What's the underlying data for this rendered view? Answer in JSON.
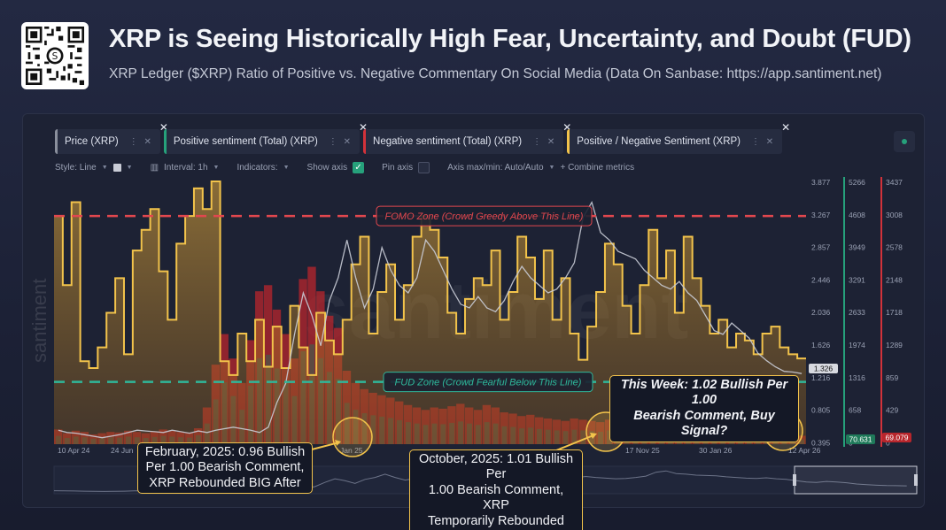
{
  "header": {
    "title": "XRP is Seeing Historically High Fear, Uncertainty, and Doubt (FUD)",
    "subtitle": "XRP Ledger ($XRP) Ratio of Positive vs. Negative Commentary On Social Media (Data On Sanbase: https://app.santiment.net)"
  },
  "metrics": [
    {
      "label": "Price (XRP)",
      "color": "#8a8f9c"
    },
    {
      "label": "Positive sentiment (Total) (XRP)",
      "color": "#26a17b"
    },
    {
      "label": "Negative sentiment (Total) (XRP)",
      "color": "#d2323a"
    },
    {
      "label": "Positive / Negative Sentiment (XRP)",
      "color": "#f2c34b"
    }
  ],
  "toolbar": {
    "style_label": "Style: Line",
    "interval_label": "Interval: 1h",
    "indicators_label": "Indicators:",
    "show_axis_label": "Show axis",
    "pin_axis_label": "Pin axis",
    "axis_minmax_label": "Axis max/min: Auto/Auto",
    "combine_label": "+ Combine metrics",
    "check_mark": "✓"
  },
  "colors": {
    "accent": "#f2c34b",
    "positive": "#26a17b",
    "negative": "#d2323a",
    "price": "#c9ccd6",
    "fomo_line": "#e2474e",
    "fud_line": "#2fb79a"
  },
  "chart_data": {
    "type": "line",
    "watermark": "santiment",
    "x_tick_labels": [
      "10 Apr 24",
      "24 Jun",
      "Jan 25",
      "17 Nov 25",
      "30 Jan 26",
      "12 Apr 26"
    ],
    "y_axes": {
      "price": [
        "3.877",
        "3.267",
        "2.857",
        "2.446",
        "2.036",
        "1.626",
        "1.216",
        "0.805",
        "0.395"
      ],
      "positive": [
        "5266",
        "4608",
        "3949",
        "3291",
        "2633",
        "1974",
        "1316",
        "658",
        "0"
      ],
      "negative": [
        "3437",
        "3008",
        "2578",
        "2148",
        "1718",
        "1289",
        "859",
        "429",
        "0"
      ]
    },
    "last_values": {
      "price": "1.326",
      "positive": "70.631",
      "negative": "69.079"
    },
    "price_range": [
      0.395,
      3.877
    ],
    "ratio_range": [
      0.4,
      2.3
    ],
    "series": [
      {
        "name": "Price (XRP)",
        "color": "#c9ccd6",
        "values": [
          0.58,
          0.55,
          0.54,
          0.52,
          0.5,
          0.48,
          0.5,
          0.52,
          0.55,
          0.58,
          0.57,
          0.56,
          0.55,
          0.58,
          0.56,
          0.54,
          0.57,
          0.55,
          0.58,
          0.6,
          0.62,
          0.6,
          0.58,
          0.55,
          0.62,
          0.95,
          1.2,
          1.85,
          2.4,
          2.1,
          1.7,
          2.3,
          2.6,
          3.1,
          2.6,
          2.2,
          2.45,
          3.0,
          2.7,
          2.5,
          2.4,
          2.6,
          3.1,
          2.95,
          2.7,
          2.45,
          2.25,
          2.2,
          2.35,
          2.2,
          2.15,
          2.3,
          2.55,
          2.75,
          2.6,
          2.5,
          2.4,
          2.45,
          2.6,
          2.8,
          3.4,
          3.6,
          3.2,
          3.1,
          2.95,
          2.9,
          2.85,
          2.7,
          2.6,
          2.5,
          2.45,
          2.55,
          2.4,
          2.3,
          2.1,
          1.9,
          1.85,
          2.0,
          1.9,
          1.8,
          1.6,
          1.5,
          1.42,
          1.36,
          1.35,
          1.33
        ]
      },
      {
        "name": "Positive / Negative Sentiment (XRP)",
        "color": "#f2c34b",
        "values": [
          2.05,
          1.55,
          2.15,
          1.0,
          0.95,
          1.1,
          1.35,
          1.6,
          1.05,
          1.8,
          1.95,
          2.1,
          1.65,
          1.3,
          1.85,
          2.05,
          2.25,
          2.1,
          2.3,
          1.0,
          0.9,
          1.2,
          1.0,
          1.3,
          0.96,
          1.25,
          0.95,
          1.4,
          1.1,
          0.9,
          1.35,
          1.15,
          1.05,
          1.3,
          1.7,
          1.9,
          1.2,
          1.5,
          1.7,
          1.3,
          1.55,
          1.9,
          2.05,
          1.95,
          1.75,
          1.35,
          1.2,
          1.45,
          1.6,
          1.55,
          1.8,
          1.3,
          1.5,
          1.9,
          1.75,
          1.45,
          1.8,
          1.3,
          1.6,
          1.2,
          1.01,
          1.25,
          1.5,
          1.85,
          1.7,
          1.4,
          1.2,
          1.55,
          1.95,
          1.6,
          1.8,
          1.35,
          1.9,
          1.6,
          1.4,
          1.2,
          1.3,
          1.1,
          1.2,
          1.15,
          1.05,
          1.2,
          1.25,
          1.1,
          1.05,
          1.02
        ]
      },
      {
        "name": "Negative sentiment (Total) (XRP)",
        "color": "#d2323a",
        "values": [
          120,
          90,
          110,
          100,
          80,
          90,
          100,
          95,
          110,
          100,
          90,
          105,
          120,
          110,
          100,
          95,
          130,
          300,
          650,
          900,
          700,
          500,
          850,
          1250,
          1300,
          1100,
          900,
          700,
          1350,
          1450,
          1250,
          1050,
          950,
          600,
          500,
          450,
          420,
          400,
          380,
          350,
          320,
          300,
          280,
          300,
          290,
          310,
          330,
          300,
          280,
          320,
          300,
          260,
          250,
          230,
          240,
          220,
          210,
          200,
          190,
          210,
          200,
          190,
          180,
          200,
          170,
          160,
          150,
          140,
          130,
          140,
          120,
          110,
          100,
          95,
          90,
          85,
          80,
          75,
          70,
          75,
          70,
          68,
          69,
          70,
          69,
          69
        ]
      }
    ],
    "reference_lines": [
      {
        "label": "FOMO Zone (Crowd Greedy Above This Line)",
        "value": 2.05,
        "color": "#e2474e"
      },
      {
        "label": "FUD Zone (Crowd Fearful Below This Line)",
        "value": 0.85,
        "color": "#2fb79a"
      }
    ],
    "annotations": [
      {
        "lines": [
          "February, 2025: 0.96 Bullish",
          "Per 1.00 Bearish Comment,",
          "XRP Rebounded BIG After"
        ]
      },
      {
        "lines": [
          "October, 2025: 1.01 Bullish Per",
          "1.00 Bearish Comment, XRP",
          "Temporarily Rebounded After"
        ]
      },
      {
        "lines": [
          "This Week: 1.02 Bullish Per 1.00",
          "Bearish Comment, Buy Signal?"
        ]
      }
    ]
  }
}
